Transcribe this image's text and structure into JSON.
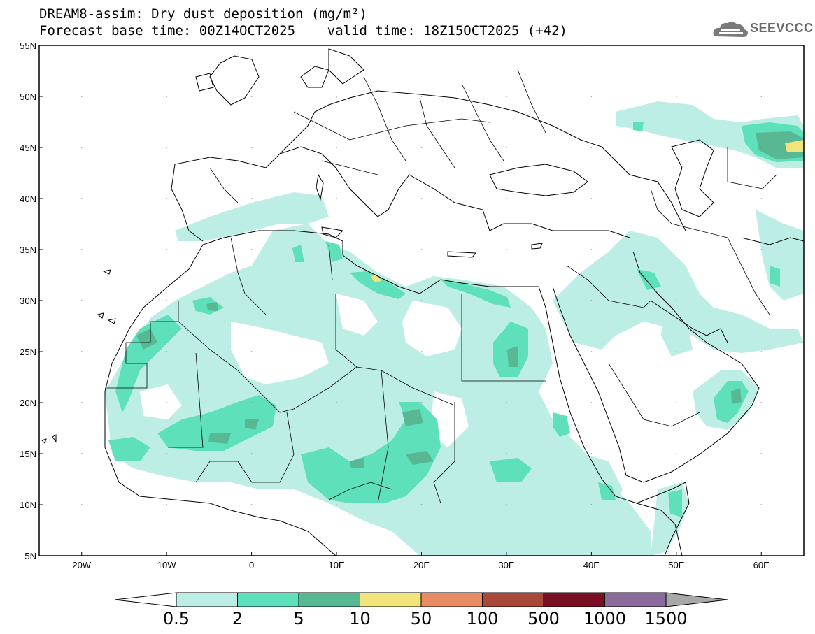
{
  "header": {
    "title_line1": "DREAM8-assim: Dry dust deposition (mg/m²)",
    "title_line2": "Forecast base time: 00Z14OCT2025    valid time: 18Z15OCT2025 (+42)",
    "logo_text": "SEEVCCC"
  },
  "map": {
    "lon_range": [
      -25,
      65
    ],
    "lat_range": [
      5,
      55
    ],
    "lat_ticks": [
      "55N",
      "50N",
      "45N",
      "40N",
      "35N",
      "30N",
      "25N",
      "20N",
      "15N",
      "10N",
      "5N"
    ],
    "lon_ticks": [
      "20W",
      "10W",
      "0",
      "10E",
      "20E",
      "30E",
      "40E",
      "50E",
      "60E"
    ]
  },
  "colorbar": {
    "labels": [
      "0.5",
      "2",
      "5",
      "10",
      "50",
      "100",
      "500",
      "1000",
      "1500"
    ],
    "colors": [
      "#bdeee6",
      "#5ee0bb",
      "#58b894",
      "#f0e47a",
      "#e98a63",
      "#a9473b",
      "#7a0e22",
      "#8a6b9c"
    ],
    "under_color": "#ffffff",
    "over_color": "#a8a8a8"
  },
  "colors": {
    "light": "#bdeee6",
    "mid": "#5ee0bb",
    "dark": "#58b894",
    "yellow": "#f0e47a"
  }
}
